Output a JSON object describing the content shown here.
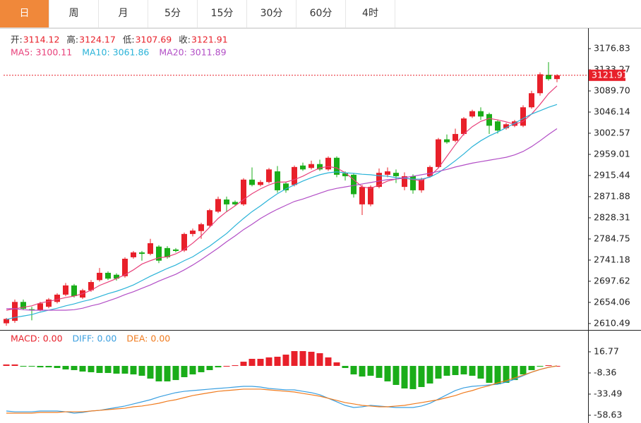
{
  "tabs": [
    "日",
    "周",
    "月",
    "5分",
    "15分",
    "30分",
    "60分",
    "4时"
  ],
  "active_tab": 0,
  "chart_data": [
    {
      "type": "candlestick",
      "readout": [
        "开:",
        "高:",
        "低:",
        "收:"
      ],
      "up_color": "#e8202a",
      "down_color": "#1aad19",
      "open": [
        2611,
        2616,
        2655,
        2640,
        2638,
        2645,
        2655,
        2670,
        2689,
        2664,
        2679,
        2700,
        2715,
        2711,
        2708,
        2747,
        2757,
        2754,
        2769,
        2766,
        2763,
        2761,
        2795,
        2801,
        2812,
        2841,
        2866,
        2861,
        2856,
        2907,
        2896,
        2902,
        2924,
        2899,
        2896,
        2936,
        2931,
        2939,
        2928,
        2952,
        2920,
        2917,
        2856,
        2856,
        2892,
        2917,
        2921,
        2892,
        2914,
        2885,
        2914,
        2933,
        2990,
        2987,
        3001,
        3037,
        3048,
        3042,
        3027,
        3013,
        3018,
        3018,
        3056,
        3085,
        3123,
        3114.12
      ],
      "high": [
        2622,
        2660,
        2660,
        2645,
        2655,
        2663,
        2673,
        2694,
        2692,
        2682,
        2700,
        2725,
        2718,
        2714,
        2747,
        2760,
        2760,
        2785,
        2772,
        2770,
        2766,
        2798,
        2806,
        2818,
        2847,
        2872,
        2872,
        2864,
        2910,
        2932,
        2906,
        2931,
        2935,
        2902,
        2936,
        2942,
        2946,
        2948,
        2955,
        2955,
        2924,
        2920,
        2896,
        2895,
        2930,
        2932,
        2928,
        2922,
        2918,
        2911,
        2936,
        2993,
        3000,
        3012,
        3036,
        3051,
        3056,
        3045,
        3030,
        3024,
        3030,
        3060,
        3090,
        3128,
        3149,
        3124.17
      ],
      "low": [
        2606,
        2612,
        2638,
        2617,
        2636,
        2642,
        2652,
        2667,
        2664,
        2661,
        2676,
        2697,
        2700,
        2699,
        2705,
        2744,
        2740,
        2751,
        2735,
        2744,
        2757,
        2758,
        2790,
        2785,
        2809,
        2838,
        2840,
        2853,
        2853,
        2893,
        2893,
        2899,
        2880,
        2880,
        2893,
        2925,
        2928,
        2925,
        2925,
        2912,
        2905,
        2870,
        2834,
        2852,
        2889,
        2912,
        2900,
        2885,
        2878,
        2880,
        2911,
        2930,
        2981,
        2984,
        2998,
        3034,
        3030,
        3001,
        3002,
        3010,
        3015,
        3015,
        3053,
        3080,
        3111,
        3107.69
      ],
      "close": [
        2620,
        2655,
        2641,
        2638,
        2652,
        2660,
        2670,
        2689,
        2667,
        2679,
        2696,
        2715,
        2703,
        2703,
        2744,
        2757,
        2754,
        2776,
        2740,
        2747,
        2760,
        2795,
        2802,
        2815,
        2844,
        2867,
        2856,
        2856,
        2907,
        2896,
        2902,
        2928,
        2885,
        2885,
        2933,
        2928,
        2939,
        2928,
        2952,
        2917,
        2914,
        2877,
        2892,
        2892,
        2921,
        2924,
        2914,
        2914,
        2885,
        2907,
        2933,
        2990,
        2984,
        3001,
        3033,
        3048,
        3037,
        3018,
        3008,
        3021,
        3027,
        3056,
        3085,
        3124,
        3114,
        3121.91
      ],
      "series": [
        {
          "name": "MA5:",
          "color": "#e8407a",
          "values": [
            2638,
            2641,
            2644,
            2647,
            2653,
            2656,
            2660,
            2664,
            2667,
            2672,
            2679,
            2689,
            2696,
            2703,
            2711,
            2721,
            2733,
            2740,
            2746,
            2748,
            2754,
            2763,
            2776,
            2791,
            2809,
            2827,
            2841,
            2853,
            2866,
            2878,
            2888,
            2896,
            2902,
            2902,
            2907,
            2914,
            2923,
            2931,
            2934,
            2931,
            2921,
            2907,
            2892,
            2889,
            2896,
            2904,
            2908,
            2910,
            2907,
            2905,
            2914,
            2931,
            2955,
            2979,
            3001,
            3016,
            3027,
            3033,
            3030,
            3026,
            3021,
            3027,
            3042,
            3062,
            3084,
            3100.11
          ]
        },
        {
          "name": "MA10:",
          "color": "#2ab3d8",
          "values": [
            2619,
            2623,
            2626,
            2629,
            2634,
            2638,
            2642,
            2647,
            2651,
            2656,
            2660,
            2666,
            2672,
            2677,
            2683,
            2690,
            2699,
            2708,
            2716,
            2724,
            2731,
            2740,
            2748,
            2759,
            2770,
            2783,
            2796,
            2812,
            2827,
            2841,
            2853,
            2866,
            2878,
            2888,
            2896,
            2904,
            2911,
            2917,
            2921,
            2923,
            2921,
            2920,
            2918,
            2917,
            2915,
            2914,
            2911,
            2910,
            2908,
            2908,
            2912,
            2921,
            2933,
            2946,
            2960,
            2975,
            2987,
            2997,
            3005,
            3014,
            3023,
            3033,
            3042,
            3049,
            3056,
            3061.86
          ]
        },
        {
          "name": "MA20:",
          "color": "#b24ec6",
          "values": [
            2641,
            2641,
            2639,
            2638,
            2638,
            2638,
            2638,
            2638,
            2639,
            2642,
            2647,
            2651,
            2657,
            2663,
            2670,
            2676,
            2683,
            2690,
            2698,
            2705,
            2712,
            2721,
            2731,
            2742,
            2754,
            2766,
            2779,
            2791,
            2804,
            2815,
            2827,
            2837,
            2846,
            2854,
            2862,
            2867,
            2873,
            2879,
            2885,
            2889,
            2892,
            2895,
            2898,
            2901,
            2904,
            2907,
            2908,
            2911,
            2914,
            2917,
            2920,
            2924,
            2928,
            2933,
            2937,
            2941,
            2944,
            2947,
            2950,
            2953,
            2958,
            2965,
            2975,
            2987,
            3000,
            3011.89
          ]
        }
      ],
      "ylim": [
        2600.2,
        3218.95
      ],
      "yticks": [
        2610.49,
        2654.06,
        2697.62,
        2741.18,
        2784.75,
        2828.31,
        2871.88,
        2915.44,
        2959.01,
        3002.57,
        3046.14,
        {
          "value": 3089.7,
          "label": "3089.70"
        },
        3133.27,
        3176.83
      ]
    },
    {
      "type": "macd",
      "pos_color": "#e8202a",
      "neg_color": "#1aad19",
      "series": [
        {
          "name": "MACD:",
          "kind": "bar",
          "color": "#e8202a",
          "value_label": "0.00",
          "values": [
            1.7,
            1.7,
            -0.8,
            -0.8,
            -1.7,
            -1.7,
            -2.5,
            -4.2,
            -5,
            -6.7,
            -7.5,
            -8.4,
            -8.4,
            -9.2,
            -9.2,
            -10.1,
            -11.7,
            -15.1,
            -18.4,
            -18.4,
            -16.8,
            -13.4,
            -10.1,
            -7.5,
            -5,
            -1.7,
            0,
            0.8,
            5,
            8.4,
            8.4,
            10.1,
            10.9,
            13.4,
            17.6,
            17.6,
            16.8,
            15.1,
            10.1,
            4.2,
            -2.5,
            -10.1,
            -12.6,
            -11.7,
            -14.2,
            -18.4,
            -22.6,
            -26.8,
            -27.6,
            -25.1,
            -20.9,
            -15.1,
            -11.7,
            -10.9,
            -10.1,
            -11.7,
            -15.1,
            -20.1,
            -21.8,
            -20.1,
            -16.8,
            -10.1,
            -5,
            -0.8,
            0.8,
            0
          ]
        },
        {
          "name": "DIFF:",
          "kind": "line",
          "color": "#3a9fe0",
          "value_label": "0.00",
          "values": [
            -53.6,
            -54.5,
            -54.5,
            -54.5,
            -53.6,
            -53.6,
            -53.6,
            -54.5,
            -56.1,
            -55.3,
            -53.6,
            -52.8,
            -51.1,
            -49.4,
            -47.7,
            -45.2,
            -42.7,
            -40.2,
            -36.9,
            -34.3,
            -31.8,
            -30.2,
            -29.3,
            -28.5,
            -27.6,
            -26.8,
            -26,
            -25.1,
            -24.3,
            -24.3,
            -25.1,
            -26.8,
            -27.6,
            -28.5,
            -28.5,
            -30.2,
            -31.8,
            -34.3,
            -38.5,
            -42.7,
            -46.9,
            -49.4,
            -48.6,
            -46.9,
            -47.7,
            -48.6,
            -49.4,
            -49.4,
            -49.4,
            -47.7,
            -44.4,
            -39.4,
            -34.3,
            -29.3,
            -26,
            -24.3,
            -23.5,
            -22.6,
            -21.8,
            -19.3,
            -15.9,
            -11.7,
            -7.5,
            -4.2,
            -1.7,
            0
          ]
        },
        {
          "name": "DEA:",
          "kind": "line",
          "color": "#f07b1e",
          "value_label": "0.00",
          "values": [
            -56.1,
            -56.1,
            -56.1,
            -56.1,
            -55.3,
            -55.3,
            -55.3,
            -54.5,
            -54.5,
            -54.5,
            -53.6,
            -52.8,
            -51.9,
            -51.1,
            -50.3,
            -48.6,
            -47.7,
            -46.1,
            -44.4,
            -41.9,
            -40.2,
            -37.7,
            -35.2,
            -33.5,
            -31.8,
            -30.2,
            -29.3,
            -28.5,
            -27.6,
            -27.6,
            -27.6,
            -28.5,
            -29.3,
            -30.2,
            -31,
            -32.7,
            -34.3,
            -36,
            -38.5,
            -41,
            -43.6,
            -45.2,
            -46.9,
            -47.7,
            -48.6,
            -48.6,
            -47.7,
            -46.9,
            -45.2,
            -43.6,
            -41.9,
            -40.2,
            -37.7,
            -35.2,
            -31.8,
            -29.3,
            -26,
            -23.5,
            -20.1,
            -17.6,
            -14.2,
            -10.9,
            -7.5,
            -4.2,
            -1.7,
            0
          ]
        }
      ],
      "ylim": [
        -66.17,
        41.06
      ],
      "yticks": [
        16.77,
        -8.36,
        -33.49,
        -58.63
      ]
    }
  ]
}
